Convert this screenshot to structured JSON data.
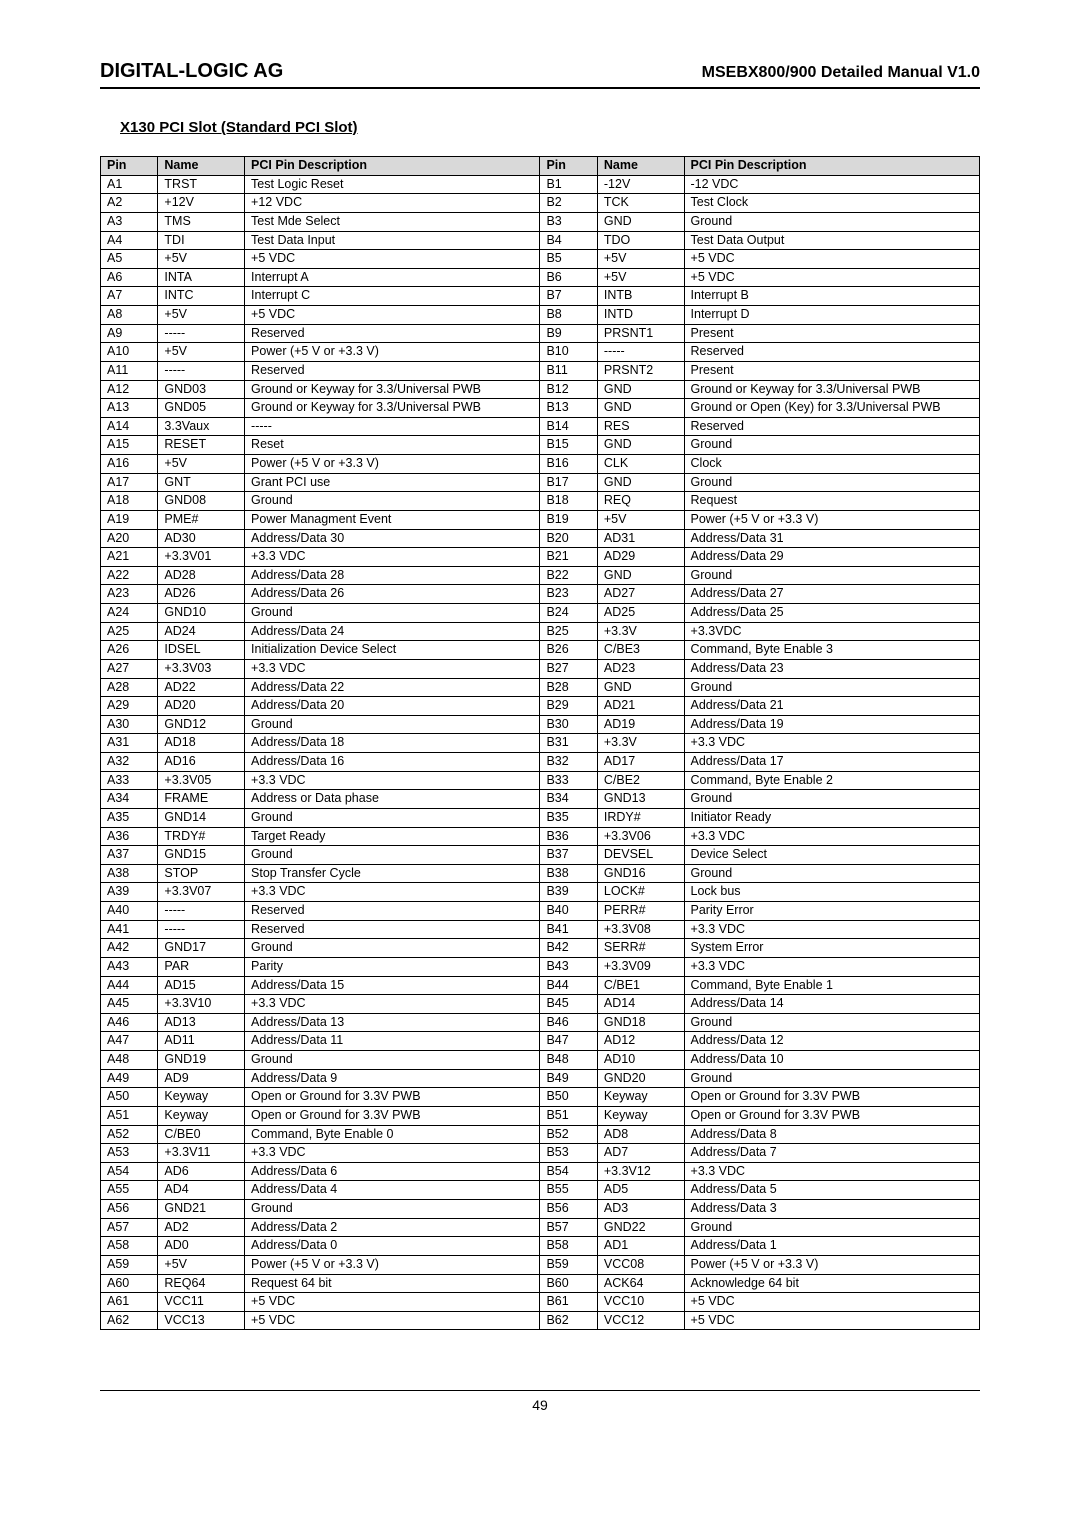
{
  "header": {
    "company": "DIGITAL-LOGIC AG",
    "manual": "MSEBX800/900 Detailed Manual V1.0"
  },
  "section_title": "X130   PCI Slot (Standard PCI Slot)",
  "table": {
    "headers": [
      "Pin",
      "Name",
      "PCI Pin Description",
      "Pin",
      "Name",
      "PCI Pin Description"
    ],
    "rows": [
      [
        "A1",
        "TRST",
        "Test Logic Reset",
        "B1",
        "-12V",
        "-12 VDC"
      ],
      [
        "A2",
        "+12V",
        "+12 VDC",
        "B2",
        "TCK",
        "Test Clock"
      ],
      [
        "A3",
        "TMS",
        "Test Mde Select",
        "B3",
        "GND",
        "Ground"
      ],
      [
        "A4",
        "TDI",
        "Test Data Input",
        "B4",
        "TDO",
        "Test Data Output"
      ],
      [
        "A5",
        "+5V",
        "+5 VDC",
        "B5",
        "+5V",
        "+5 VDC"
      ],
      [
        "A6",
        "INTA",
        "Interrupt A",
        "B6",
        "+5V",
        "+5 VDC"
      ],
      [
        "A7",
        "INTC",
        "Interrupt C",
        "B7",
        "INTB",
        "Interrupt B"
      ],
      [
        "A8",
        "+5V",
        "+5 VDC",
        "B8",
        "INTD",
        "Interrupt D"
      ],
      [
        "A9",
        "-----",
        "Reserved",
        "B9",
        "PRSNT1",
        "Present"
      ],
      [
        "A10",
        "+5V",
        "Power (+5 V or +3.3 V)",
        "B10",
        "-----",
        "Reserved"
      ],
      [
        "A11",
        "-----",
        "Reserved",
        "B11",
        "PRSNT2",
        "Present"
      ],
      [
        "A12",
        "GND03",
        "Ground or Keyway for 3.3/Universal PWB",
        "B12",
        "GND",
        "Ground or Keyway for 3.3/Universal PWB"
      ],
      [
        "A13",
        "GND05",
        "Ground or Keyway for 3.3/Universal PWB",
        "B13",
        "GND",
        "Ground or Open (Key) for 3.3/Universal PWB"
      ],
      [
        "A14",
        "3.3Vaux",
        "-----",
        "B14",
        "RES",
        "Reserved"
      ],
      [
        "A15",
        "RESET",
        "Reset",
        "B15",
        "GND",
        "Ground"
      ],
      [
        "A16",
        "+5V",
        "Power (+5 V or +3.3 V)",
        "B16",
        "CLK",
        "Clock"
      ],
      [
        "A17",
        "GNT",
        "Grant PCI use",
        "B17",
        "GND",
        "Ground"
      ],
      [
        "A18",
        "GND08",
        "Ground",
        "B18",
        "REQ",
        "Request"
      ],
      [
        "A19",
        "PME#",
        "Power Managment Event",
        "B19",
        "+5V",
        "Power (+5 V or +3.3 V)"
      ],
      [
        "A20",
        "AD30",
        "Address/Data 30",
        "B20",
        "AD31",
        "Address/Data 31"
      ],
      [
        "A21",
        "+3.3V01",
        "+3.3 VDC",
        "B21",
        "AD29",
        "Address/Data 29"
      ],
      [
        "A22",
        "AD28",
        "Address/Data 28",
        "B22",
        "GND",
        "Ground"
      ],
      [
        "A23",
        "AD26",
        "Address/Data 26",
        "B23",
        "AD27",
        "Address/Data 27"
      ],
      [
        "A24",
        "GND10",
        "Ground",
        "B24",
        "AD25",
        "Address/Data 25"
      ],
      [
        "A25",
        "AD24",
        "Address/Data 24",
        "B25",
        "+3.3V",
        "+3.3VDC"
      ],
      [
        "A26",
        "IDSEL",
        "Initialization Device Select",
        "B26",
        "C/BE3",
        "Command, Byte Enable 3"
      ],
      [
        "A27",
        "+3.3V03",
        "+3.3 VDC",
        "B27",
        "AD23",
        "Address/Data 23"
      ],
      [
        "A28",
        "AD22",
        "Address/Data 22",
        "B28",
        "GND",
        "Ground"
      ],
      [
        "A29",
        "AD20",
        "Address/Data 20",
        "B29",
        "AD21",
        "Address/Data 21"
      ],
      [
        "A30",
        "GND12",
        "Ground",
        "B30",
        "AD19",
        "Address/Data 19"
      ],
      [
        "A31",
        "AD18",
        "Address/Data 18",
        "B31",
        "+3.3V",
        "+3.3 VDC"
      ],
      [
        "A32",
        "AD16",
        "Address/Data 16",
        "B32",
        "AD17",
        "Address/Data 17"
      ],
      [
        "A33",
        "+3.3V05",
        "+3.3 VDC",
        "B33",
        "C/BE2",
        "Command, Byte Enable 2"
      ],
      [
        "A34",
        "FRAME",
        "Address or Data phase",
        "B34",
        "GND13",
        "Ground"
      ],
      [
        "A35",
        "GND14",
        "Ground",
        "B35",
        "IRDY#",
        "Initiator Ready"
      ],
      [
        "A36",
        "TRDY#",
        "Target Ready",
        "B36",
        "+3.3V06",
        "+3.3 VDC"
      ],
      [
        "A37",
        "GND15",
        "Ground",
        "B37",
        "DEVSEL",
        "Device Select"
      ],
      [
        "A38",
        "STOP",
        "Stop Transfer Cycle",
        "B38",
        "GND16",
        "Ground"
      ],
      [
        "A39",
        "+3.3V07",
        "+3.3 VDC",
        "B39",
        "LOCK#",
        "Lock bus"
      ],
      [
        "A40",
        "-----",
        "Reserved",
        "B40",
        "PERR#",
        "Parity Error"
      ],
      [
        "A41",
        "-----",
        "Reserved",
        "B41",
        "+3.3V08",
        "+3.3 VDC"
      ],
      [
        "A42",
        "GND17",
        "Ground",
        "B42",
        "SERR#",
        "System Error"
      ],
      [
        "A43",
        "PAR",
        "Parity",
        "B43",
        "+3.3V09",
        "+3.3 VDC"
      ],
      [
        "A44",
        "AD15",
        "Address/Data 15",
        "B44",
        "C/BE1",
        "Command, Byte Enable 1"
      ],
      [
        "A45",
        "+3.3V10",
        "+3.3 VDC",
        "B45",
        "AD14",
        "Address/Data 14"
      ],
      [
        "A46",
        "AD13",
        "Address/Data 13",
        "B46",
        "GND18",
        "Ground"
      ],
      [
        "A47",
        "AD11",
        "Address/Data 11",
        "B47",
        "AD12",
        "Address/Data 12"
      ],
      [
        "A48",
        "GND19",
        "Ground",
        "B48",
        "AD10",
        "Address/Data 10"
      ],
      [
        "A49",
        "AD9",
        "Address/Data 9",
        "B49",
        "GND20",
        "Ground"
      ],
      [
        "A50",
        "Keyway",
        "Open or Ground for 3.3V PWB",
        "B50",
        "Keyway",
        "Open or Ground for 3.3V PWB"
      ],
      [
        "A51",
        "Keyway",
        "Open or Ground for 3.3V PWB",
        "B51",
        "Keyway",
        "Open or Ground for 3.3V PWB"
      ],
      [
        "A52",
        "C/BE0",
        "Command, Byte Enable 0",
        "B52",
        "AD8",
        "Address/Data 8"
      ],
      [
        "A53",
        "+3.3V11",
        "+3.3 VDC",
        "B53",
        "AD7",
        "Address/Data 7"
      ],
      [
        "A54",
        "AD6",
        "Address/Data 6",
        "B54",
        "+3.3V12",
        "+3.3 VDC"
      ],
      [
        "A55",
        "AD4",
        "Address/Data 4",
        "B55",
        "AD5",
        "Address/Data 5"
      ],
      [
        "A56",
        "GND21",
        "Ground",
        "B56",
        "AD3",
        "Address/Data 3"
      ],
      [
        "A57",
        "AD2",
        "Address/Data 2",
        "B57",
        "GND22",
        "Ground"
      ],
      [
        "A58",
        "AD0",
        "Address/Data 0",
        "B58",
        "AD1",
        "Address/Data 1"
      ],
      [
        "A59",
        "+5V",
        "Power (+5 V or +3.3 V)",
        "B59",
        "VCC08",
        "Power (+5 V or +3.3 V)"
      ],
      [
        "A60",
        "REQ64",
        "Request 64 bit",
        "B60",
        "ACK64",
        "Acknowledge 64 bit"
      ],
      [
        "A61",
        "VCC11",
        "+5 VDC",
        "B61",
        "VCC10",
        "+5 VDC"
      ],
      [
        "A62",
        "VCC13",
        "+5 VDC",
        "B62",
        "VCC12",
        "+5 VDC"
      ]
    ]
  },
  "page_number": "49",
  "style": {
    "header_bg": "#d9d9d9",
    "border_color": "#000000",
    "font_family": "Arial",
    "body_font_size": 12.5
  }
}
